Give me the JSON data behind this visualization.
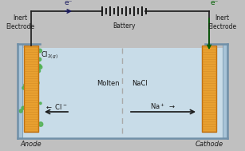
{
  "bg_color": "#c0c0c0",
  "liquid_color": "#c8dce8",
  "tank_border": "#7090a8",
  "side_wall_color": "#a8c4d8",
  "electrode_color": "#e8a030",
  "electrode_border": "#c07010",
  "bubble_color": "#50b050",
  "wire_color": "#1a1a1a",
  "eminus_left_color": "#1a1a60",
  "eminus_right_color": "#006000",
  "ion_color": "#1a1a1a",
  "text_color": "#1a1a1a",
  "battery_label": "Battery",
  "anode_label": "Anode",
  "cathode_label": "Cathode",
  "molten_label": "Molten",
  "nacl_label": "NaCl",
  "inert_left": "Inert\nElectrode",
  "inert_right": "Inert\nElectrode",
  "eminus": "e⁻"
}
